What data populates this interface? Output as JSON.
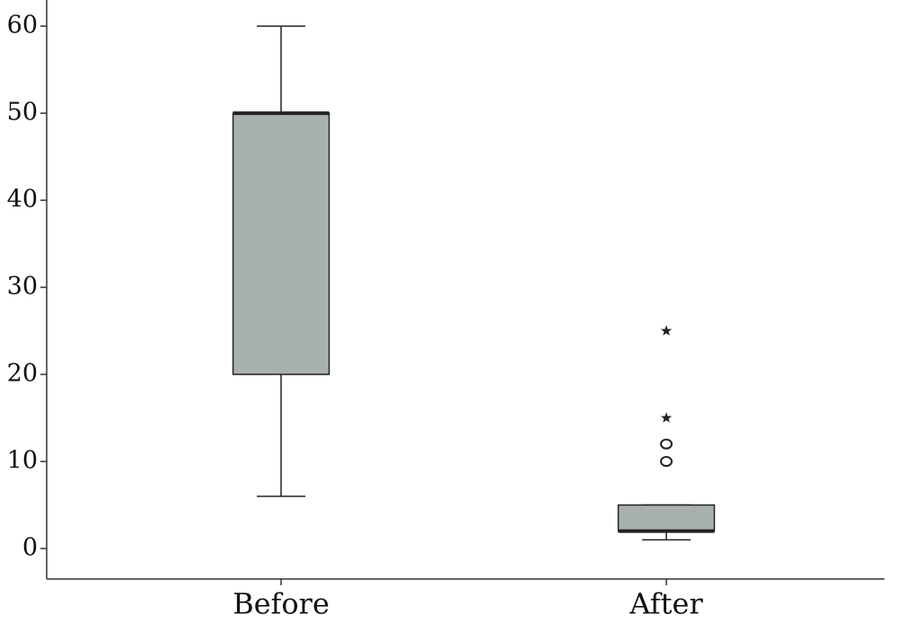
{
  "chart_data": {
    "type": "box",
    "categories": [
      "Before",
      "After"
    ],
    "series": [
      {
        "min": 6,
        "q1": 20,
        "median": 50,
        "q3": 50,
        "max": 60,
        "outliers": [],
        "extremes": []
      },
      {
        "min": 1,
        "q1": 2,
        "median": 2,
        "q3": 5,
        "max": 5,
        "outliers": [
          10,
          12
        ],
        "extremes": [
          15,
          25
        ]
      }
    ],
    "color": "#a9b1ae",
    "ylim": [
      -3.5,
      63
    ],
    "yticks": [
      0,
      10,
      20,
      30,
      40,
      50,
      60
    ],
    "grid": false
  }
}
